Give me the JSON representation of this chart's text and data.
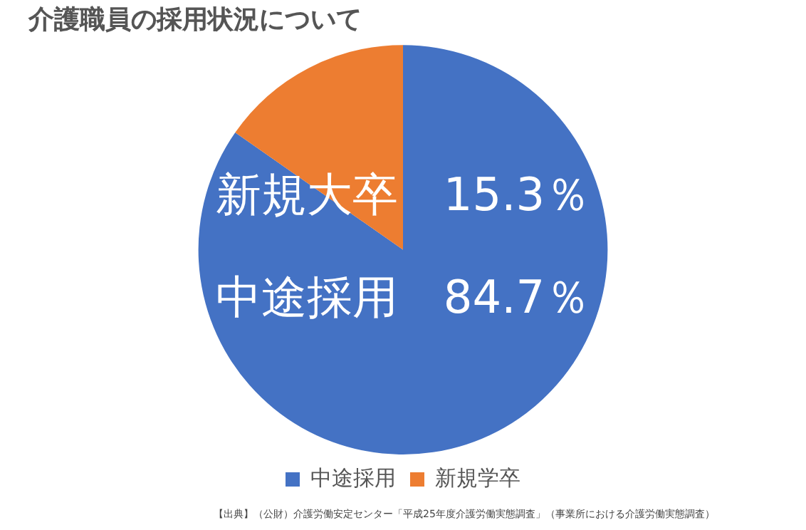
{
  "chart_data": {
    "type": "pie",
    "title": "介護職員の採用状況について",
    "categories": [
      "中途採用",
      "新規学卒"
    ],
    "values": [
      84.7,
      15.3
    ],
    "colors": [
      "#4472c4",
      "#ed7d31"
    ],
    "legend": "bottom",
    "annotations": [
      "新規大卒　15.3％",
      "中途採用　84.7％",
      "【出典】（公財）介護労働安定センター「平成25年度介護労働実態調査」（事業所における介護労働実態調査）"
    ]
  }
}
